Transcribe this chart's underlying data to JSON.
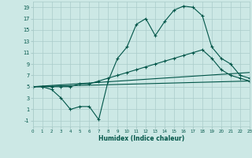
{
  "xlabel": "Humidex (Indice chaleur)",
  "bg_color": "#cce8e5",
  "grid_color": "#aaccca",
  "line_color": "#005548",
  "xlim": [
    0,
    23
  ],
  "ylim": [
    -2,
    20
  ],
  "xticks": [
    0,
    1,
    2,
    3,
    4,
    5,
    6,
    7,
    8,
    9,
    10,
    11,
    12,
    13,
    14,
    15,
    16,
    17,
    18,
    19,
    20,
    21,
    22,
    23
  ],
  "yticks": [
    -1,
    1,
    3,
    5,
    7,
    9,
    11,
    13,
    15,
    17,
    19
  ],
  "curve1_x": [
    0,
    1,
    2,
    3,
    4,
    5,
    6,
    7,
    8,
    9,
    10,
    11,
    12,
    13,
    14,
    15,
    16,
    17,
    18,
    19,
    20,
    21,
    22,
    23
  ],
  "curve1_y": [
    5,
    5,
    4.5,
    3,
    1,
    1.5,
    1.5,
    -0.8,
    6,
    10,
    12,
    16,
    17,
    14,
    16.5,
    18.5,
    19.2,
    19,
    17.5,
    12,
    10,
    9,
    7,
    6.5
  ],
  "curve2_x": [
    0,
    1,
    2,
    3,
    4,
    5,
    6,
    7,
    8,
    9,
    10,
    11,
    12,
    13,
    14,
    15,
    16,
    17,
    18,
    19,
    20,
    21,
    22,
    23
  ],
  "curve2_y": [
    5,
    5,
    5,
    5,
    5,
    5.5,
    5.5,
    6,
    6.5,
    7,
    7.5,
    8,
    8.5,
    9,
    9.5,
    10,
    10.5,
    11,
    11.5,
    10,
    8,
    7,
    6.5,
    6
  ],
  "curve3_x": [
    0,
    23
  ],
  "curve3_y": [
    5,
    7.5
  ],
  "curve4_x": [
    0,
    23
  ],
  "curve4_y": [
    5,
    6.0
  ]
}
